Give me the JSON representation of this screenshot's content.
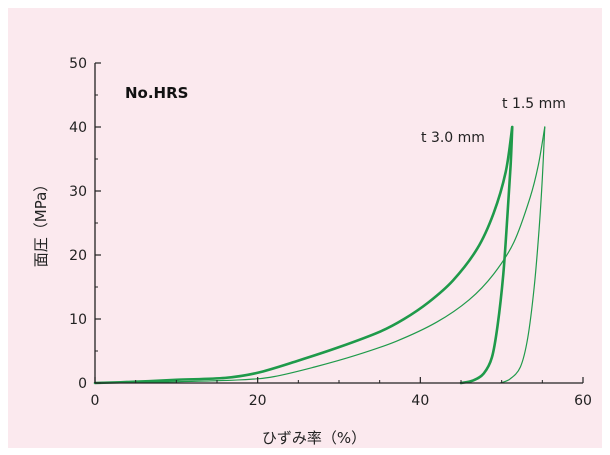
{
  "chart_data": {
    "type": "line",
    "title": "No.HRS",
    "xlabel": "ひずみ率（%）",
    "ylabel": "面圧（MPa）",
    "xlim": [
      0,
      60
    ],
    "ylim": [
      0,
      50
    ],
    "xticks": [
      "0",
      "20",
      "40",
      "60"
    ],
    "yticks": [
      "0",
      "10",
      "20",
      "30",
      "40",
      "50"
    ],
    "grid": false,
    "colors": {
      "series": "#1f9a4a",
      "panel": "#fbe9ee",
      "axis": "#222222"
    },
    "series": [
      {
        "name": "t 3.0 mm",
        "width": "thick",
        "loading": [
          [
            0,
            0
          ],
          [
            5,
            0.2
          ],
          [
            10,
            0.5
          ],
          [
            16,
            0.8
          ],
          [
            20,
            1.6
          ],
          [
            25,
            3.5
          ],
          [
            30,
            5.6
          ],
          [
            35,
            8
          ],
          [
            38,
            10
          ],
          [
            41,
            12.6
          ],
          [
            44,
            16
          ],
          [
            47,
            21
          ],
          [
            49,
            26.5
          ],
          [
            50.5,
            33
          ],
          [
            51.3,
            40
          ]
        ],
        "unloading": [
          [
            51.3,
            40
          ],
          [
            51.1,
            34
          ],
          [
            50.7,
            26
          ],
          [
            50.2,
            17
          ],
          [
            49.5,
            9
          ],
          [
            48.8,
            4
          ],
          [
            47.8,
            1.5
          ],
          [
            46.5,
            0.4
          ],
          [
            45,
            0
          ]
        ]
      },
      {
        "name": "t 1.5 mm",
        "width": "thin",
        "loading": [
          [
            0,
            0
          ],
          [
            10,
            0.2
          ],
          [
            18,
            0.5
          ],
          [
            22,
            1
          ],
          [
            27,
            2.5
          ],
          [
            32,
            4.3
          ],
          [
            37,
            6.5
          ],
          [
            42,
            9.5
          ],
          [
            46,
            13
          ],
          [
            49,
            17
          ],
          [
            51.5,
            22
          ],
          [
            53.5,
            29
          ],
          [
            54.5,
            34
          ],
          [
            55.3,
            40
          ]
        ],
        "unloading": [
          [
            55.3,
            40
          ],
          [
            55,
            32
          ],
          [
            54.6,
            24
          ],
          [
            54,
            15
          ],
          [
            53.2,
            7
          ],
          [
            52.3,
            2.5
          ],
          [
            51,
            0.6
          ],
          [
            49.8,
            0
          ]
        ]
      }
    ]
  }
}
